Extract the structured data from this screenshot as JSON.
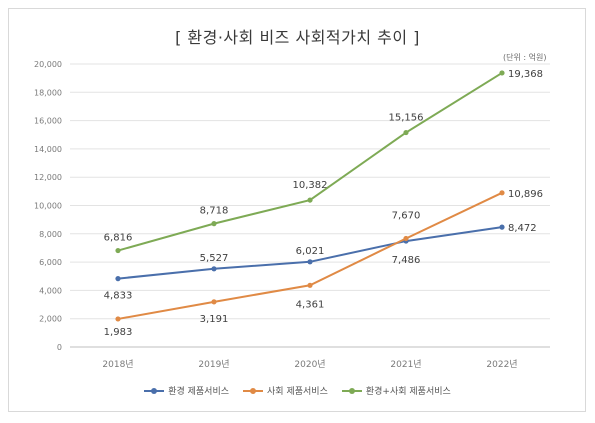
{
  "chart_data": {
    "type": "line",
    "title": "[ 환경·사회 비즈 사회적가치 추이 ]",
    "unit_note": "(단위 : 억원)",
    "categories": [
      "2018년",
      "2019년",
      "2020년",
      "2021년",
      "2022년"
    ],
    "ylim": [
      0,
      20000
    ],
    "yticks": [
      "0",
      "2,000",
      "4,000",
      "6,000",
      "8,000",
      "10,000",
      "12,000",
      "14,000",
      "16,000",
      "18,000",
      "20,000"
    ],
    "grid": true,
    "legend_position": "bottom",
    "series": [
      {
        "name": "환경 제품서비스",
        "color": "#4a6fab",
        "values": [
          4833,
          5527,
          6021,
          7486,
          8472
        ],
        "labels": [
          "4,833",
          "5,527",
          "6,021",
          "7,486",
          "8,472"
        ]
      },
      {
        "name": "사회 제품서비스",
        "color": "#e08a45",
        "values": [
          1983,
          3191,
          4361,
          7670,
          10896
        ],
        "labels": [
          "1,983",
          "3,191",
          "4,361",
          "7,670",
          "10,896"
        ]
      },
      {
        "name": "환경+사회 제품서비스",
        "color": "#7eaa55",
        "values": [
          6816,
          8718,
          10382,
          15156,
          19368
        ],
        "labels": [
          "6,816",
          "8,718",
          "10,382",
          "15,156",
          "19,368"
        ]
      }
    ]
  }
}
